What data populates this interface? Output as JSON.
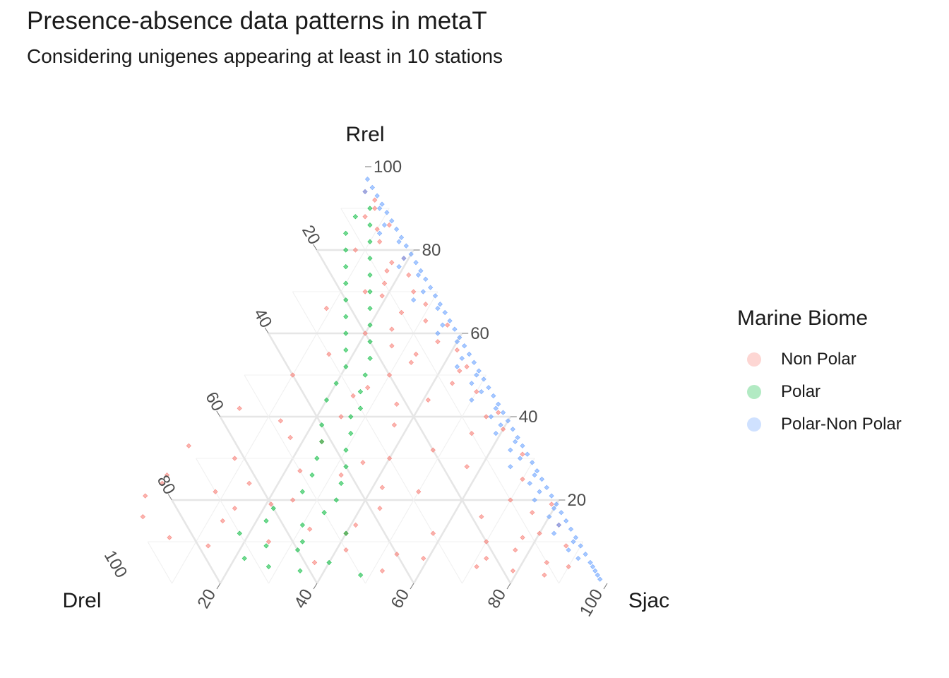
{
  "title": "Presence-absence data patterns in metaT",
  "subtitle": "Considering unigenes appearing at least in 10 stations",
  "chart_data": {
    "type": "ternary-scatter",
    "axes": {
      "top": "Rrel",
      "left": "Drel",
      "right": "Sjac"
    },
    "ticks": [
      20,
      40,
      60,
      80,
      100
    ],
    "tick_labels": [
      "20",
      "40",
      "60",
      "80",
      "100"
    ],
    "range": [
      0,
      100
    ],
    "grid": true,
    "legend": {
      "title": "Marine Biome",
      "position": "right",
      "entries": [
        {
          "name": "Non Polar",
          "color": "#F8766D"
        },
        {
          "name": "Polar",
          "color": "#00BA38"
        },
        {
          "name": "Polar-Non Polar",
          "color": "#619CFF"
        }
      ]
    },
    "series": [
      {
        "name": "Non Polar",
        "color": "#F8766D",
        "points": [
          [
            2,
            12,
            86
          ],
          [
            4,
            25,
            71
          ],
          [
            5,
            10,
            85
          ],
          [
            6,
            35,
            59
          ],
          [
            8,
            15,
            77
          ],
          [
            8,
            50,
            42
          ],
          [
            10,
            20,
            70
          ],
          [
            10,
            65,
            25
          ],
          [
            12,
            8,
            80
          ],
          [
            12,
            30,
            58
          ],
          [
            14,
            45,
            41
          ],
          [
            15,
            72,
            13
          ],
          [
            16,
            18,
            66
          ],
          [
            18,
            38,
            44
          ],
          [
            20,
            55,
            25
          ],
          [
            20,
            10,
            70
          ],
          [
            22,
            28,
            50
          ],
          [
            24,
            80,
            -4
          ],
          [
            25,
            5,
            70
          ],
          [
            26,
            42,
            32
          ],
          [
            28,
            15,
            57
          ],
          [
            30,
            62,
            8
          ],
          [
            30,
            30,
            40
          ],
          [
            32,
            20,
            48
          ],
          [
            35,
            48,
            17
          ],
          [
            36,
            10,
            54
          ],
          [
            38,
            25,
            37
          ],
          [
            40,
            5,
            55
          ],
          [
            40,
            35,
            25
          ],
          [
            42,
            55,
            3
          ],
          [
            44,
            15,
            41
          ],
          [
            45,
            30,
            25
          ],
          [
            48,
            8,
            44
          ],
          [
            50,
            20,
            30
          ],
          [
            50,
            40,
            10
          ],
          [
            52,
            3,
            45
          ],
          [
            55,
            12,
            33
          ],
          [
            55,
            30,
            15
          ],
          [
            58,
            6,
            36
          ],
          [
            60,
            20,
            20
          ],
          [
            62,
            2,
            36
          ],
          [
            65,
            10,
            25
          ],
          [
            66,
            25,
            9
          ],
          [
            70,
            5,
            25
          ],
          [
            70,
            15,
            15
          ],
          [
            75,
            8,
            17
          ],
          [
            78,
            3,
            19
          ],
          [
            80,
            12,
            8
          ],
          [
            85,
            5,
            10
          ],
          [
            90,
            3,
            7
          ],
          [
            4,
            6,
            90
          ],
          [
            9,
            4,
            87
          ],
          [
            14,
            3,
            83
          ],
          [
            19,
            2,
            79
          ],
          [
            3,
            18,
            79
          ],
          [
            6,
            22,
            72
          ],
          [
            11,
            12,
            77
          ],
          [
            17,
            7,
            76
          ],
          [
            7,
            40,
            53
          ],
          [
            13,
            55,
            32
          ],
          [
            22,
            70,
            8
          ],
          [
            27,
            50,
            23
          ],
          [
            33,
            70,
            -3
          ],
          [
            24,
            62,
            14
          ],
          [
            18,
            68,
            14
          ],
          [
            29,
            36,
            35
          ],
          [
            34,
            42,
            24
          ],
          [
            39,
            48,
            13
          ],
          [
            43,
            22,
            35
          ],
          [
            47,
            26,
            27
          ],
          [
            53,
            14,
            33
          ],
          [
            57,
            16,
            27
          ],
          [
            61,
            14,
            25
          ],
          [
            63,
            6,
            31
          ],
          [
            67,
            4,
            29
          ],
          [
            69,
            12,
            19
          ],
          [
            72,
            10,
            18
          ],
          [
            74,
            4,
            22
          ],
          [
            77,
            6,
            17
          ],
          [
            82,
            6,
            12
          ],
          [
            86,
            2,
            12
          ],
          [
            88,
            6,
            6
          ],
          [
            92,
            2,
            6
          ],
          [
            94,
            3,
            3
          ],
          [
            31,
            2,
            67
          ],
          [
            37,
            3,
            60
          ],
          [
            41,
            2,
            57
          ],
          [
            46,
            4,
            50
          ],
          [
            51,
            5,
            44
          ],
          [
            56,
            3,
            41
          ],
          [
            3,
            45,
            52
          ],
          [
            5,
            58,
            37
          ],
          [
            9,
            78,
            13
          ],
          [
            11,
            85,
            4
          ],
          [
            16,
            88,
            -4
          ],
          [
            21,
            85,
            -6
          ],
          [
            26,
            78,
            -4
          ],
          [
            12,
            48,
            40
          ],
          [
            19,
            60,
            21
          ],
          [
            23,
            35,
            42
          ]
        ]
      },
      {
        "name": "Polar",
        "color": "#00BA38",
        "points": [
          [
            2,
            50,
            48
          ],
          [
            3,
            62,
            35
          ],
          [
            4,
            68,
            28
          ],
          [
            5,
            55,
            40
          ],
          [
            6,
            72,
            22
          ],
          [
            8,
            60,
            32
          ],
          [
            9,
            66,
            25
          ],
          [
            10,
            58,
            32
          ],
          [
            12,
            48,
            40
          ],
          [
            12,
            70,
            18
          ],
          [
            14,
            56,
            30
          ],
          [
            15,
            63,
            22
          ],
          [
            17,
            50,
            33
          ],
          [
            18,
            60,
            22
          ],
          [
            20,
            46,
            34
          ],
          [
            22,
            52,
            26
          ],
          [
            24,
            43,
            33
          ],
          [
            26,
            48,
            26
          ],
          [
            28,
            40,
            32
          ],
          [
            30,
            45,
            25
          ],
          [
            32,
            38,
            30
          ],
          [
            34,
            42,
            24
          ],
          [
            36,
            35,
            29
          ],
          [
            38,
            40,
            22
          ],
          [
            40,
            33,
            27
          ],
          [
            42,
            30,
            28
          ],
          [
            44,
            36,
            20
          ],
          [
            46,
            28,
            26
          ],
          [
            48,
            32,
            20
          ],
          [
            50,
            25,
            25
          ],
          [
            52,
            28,
            20
          ],
          [
            54,
            22,
            24
          ],
          [
            56,
            26,
            18
          ],
          [
            58,
            20,
            22
          ],
          [
            60,
            24,
            16
          ],
          [
            62,
            18,
            20
          ],
          [
            64,
            22,
            14
          ],
          [
            66,
            16,
            18
          ],
          [
            68,
            20,
            12
          ],
          [
            70,
            14,
            16
          ],
          [
            72,
            18,
            10
          ],
          [
            74,
            12,
            14
          ],
          [
            76,
            16,
            8
          ],
          [
            78,
            10,
            12
          ],
          [
            80,
            14,
            6
          ],
          [
            82,
            8,
            10
          ],
          [
            84,
            12,
            4
          ],
          [
            86,
            6,
            8
          ],
          [
            88,
            8,
            4
          ],
          [
            90,
            4,
            6
          ]
        ]
      },
      {
        "name": "Polar-Non Polar",
        "color": "#619CFF",
        "points": [
          [
            1,
            1,
            98
          ],
          [
            2,
            1,
            97
          ],
          [
            3,
            1,
            96
          ],
          [
            4,
            1,
            95
          ],
          [
            5,
            1,
            94
          ],
          [
            7,
            1,
            92
          ],
          [
            9,
            1,
            90
          ],
          [
            11,
            1,
            88
          ],
          [
            13,
            1,
            86
          ],
          [
            15,
            1,
            84
          ],
          [
            17,
            1,
            82
          ],
          [
            19,
            1,
            80
          ],
          [
            21,
            1,
            78
          ],
          [
            23,
            1,
            76
          ],
          [
            25,
            1,
            74
          ],
          [
            27,
            1,
            72
          ],
          [
            29,
            1,
            70
          ],
          [
            31,
            1,
            68
          ],
          [
            33,
            1,
            66
          ],
          [
            35,
            1,
            64
          ],
          [
            37,
            1,
            62
          ],
          [
            39,
            1,
            60
          ],
          [
            41,
            1,
            58
          ],
          [
            43,
            1,
            56
          ],
          [
            45,
            1,
            54
          ],
          [
            47,
            1,
            52
          ],
          [
            49,
            1,
            50
          ],
          [
            51,
            1,
            48
          ],
          [
            53,
            1,
            46
          ],
          [
            55,
            1,
            44
          ],
          [
            57,
            1,
            42
          ],
          [
            59,
            1,
            40
          ],
          [
            61,
            1,
            38
          ],
          [
            63,
            1,
            36
          ],
          [
            65,
            1,
            34
          ],
          [
            67,
            1,
            32
          ],
          [
            69,
            1,
            30
          ],
          [
            71,
            1,
            28
          ],
          [
            73,
            1,
            26
          ],
          [
            75,
            1,
            24
          ],
          [
            77,
            1,
            22
          ],
          [
            79,
            1,
            20
          ],
          [
            81,
            1,
            18
          ],
          [
            83,
            1,
            16
          ],
          [
            85,
            1,
            14
          ],
          [
            87,
            1,
            12
          ],
          [
            89,
            1,
            10
          ],
          [
            91,
            1,
            8
          ],
          [
            93,
            1,
            6
          ],
          [
            95,
            1,
            4
          ],
          [
            97,
            1,
            2
          ],
          [
            6,
            3,
            91
          ],
          [
            10,
            2,
            88
          ],
          [
            14,
            3,
            83
          ],
          [
            18,
            2,
            80
          ],
          [
            22,
            3,
            75
          ],
          [
            26,
            2,
            72
          ],
          [
            30,
            3,
            67
          ],
          [
            34,
            2,
            64
          ],
          [
            38,
            3,
            59
          ],
          [
            42,
            2,
            56
          ],
          [
            46,
            3,
            51
          ],
          [
            50,
            2,
            48
          ],
          [
            54,
            3,
            43
          ],
          [
            58,
            2,
            40
          ],
          [
            62,
            3,
            35
          ],
          [
            66,
            2,
            32
          ],
          [
            70,
            3,
            27
          ],
          [
            74,
            2,
            24
          ],
          [
            78,
            3,
            19
          ],
          [
            82,
            2,
            16
          ],
          [
            86,
            3,
            11
          ],
          [
            90,
            2,
            8
          ],
          [
            94,
            3,
            3
          ],
          [
            12,
            5,
            83
          ],
          [
            20,
            5,
            75
          ],
          [
            28,
            6,
            66
          ],
          [
            36,
            5,
            59
          ],
          [
            44,
            6,
            50
          ],
          [
            52,
            5,
            43
          ],
          [
            60,
            5,
            35
          ],
          [
            68,
            6,
            26
          ],
          [
            76,
            5,
            19
          ],
          [
            84,
            5,
            11
          ],
          [
            8,
            4,
            88
          ],
          [
            16,
            4,
            80
          ],
          [
            24,
            4,
            72
          ],
          [
            32,
            4,
            64
          ],
          [
            40,
            4,
            56
          ],
          [
            48,
            4,
            48
          ]
        ]
      }
    ]
  }
}
